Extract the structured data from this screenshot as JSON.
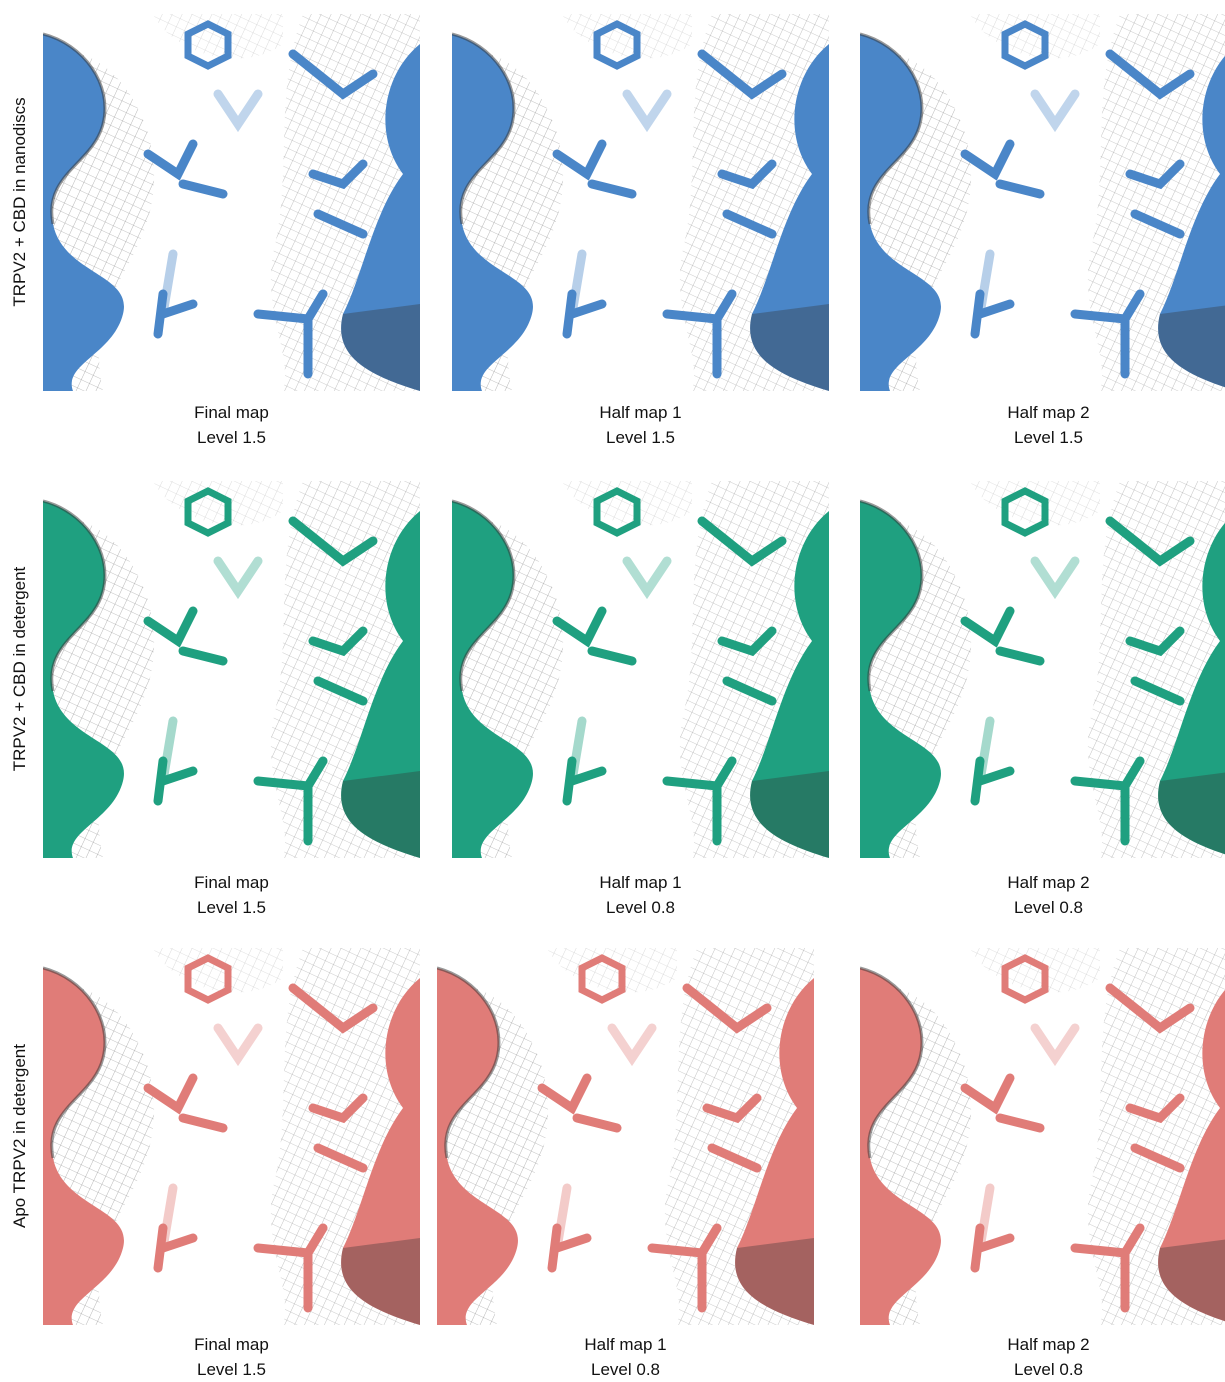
{
  "rows": [
    {
      "label": "TRPV2 + CBD in nanodiscs",
      "panels": [
        {
          "title": "Final map",
          "level": "Level 1.5"
        },
        {
          "title": "Half map 1",
          "level": "Level 1.5"
        },
        {
          "title": "Half map 2",
          "level": "Level 1.5"
        }
      ]
    },
    {
      "label": "TRPV2 + CBD in detergent",
      "panels": [
        {
          "title": "Final map",
          "level": "Level 1.5"
        },
        {
          "title": "Half map 1",
          "level": "Level 0.8"
        },
        {
          "title": "Half map 2",
          "level": "Level 0.8"
        }
      ]
    },
    {
      "label": "Apo TRPV2 in detergent",
      "panels": [
        {
          "title": "Final map",
          "level": "Level 1.5"
        },
        {
          "title": "Half map 1",
          "level": "Level 0.8"
        },
        {
          "title": "Half map 2",
          "level": "Level 0.8"
        }
      ]
    }
  ]
}
